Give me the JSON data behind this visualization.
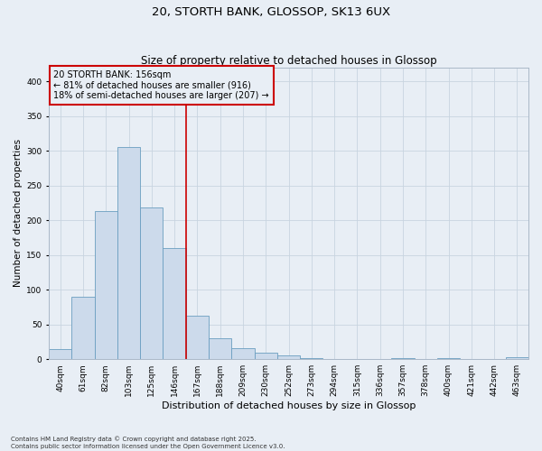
{
  "title1": "20, STORTH BANK, GLOSSOP, SK13 6UX",
  "title2": "Size of property relative to detached houses in Glossop",
  "xlabel": "Distribution of detached houses by size in Glossop",
  "ylabel": "Number of detached properties",
  "footnote1": "Contains HM Land Registry data © Crown copyright and database right 2025.",
  "footnote2": "Contains public sector information licensed under the Open Government Licence v3.0.",
  "categories": [
    "40sqm",
    "61sqm",
    "82sqm",
    "103sqm",
    "125sqm",
    "146sqm",
    "167sqm",
    "188sqm",
    "209sqm",
    "230sqm",
    "252sqm",
    "273sqm",
    "294sqm",
    "315sqm",
    "336sqm",
    "357sqm",
    "378sqm",
    "400sqm",
    "421sqm",
    "442sqm",
    "463sqm"
  ],
  "values": [
    15,
    90,
    213,
    305,
    218,
    160,
    63,
    30,
    16,
    10,
    6,
    1,
    0,
    0,
    0,
    2,
    0,
    1,
    0,
    0,
    3
  ],
  "bar_color": "#ccdaeb",
  "bar_edge_color": "#6a9ec0",
  "grid_color": "#c8d4e0",
  "bg_color": "#e8eef5",
  "vline_color": "#cc0000",
  "vline_pos": 5.5,
  "annotation_text": "20 STORTH BANK: 156sqm\n← 81% of detached houses are smaller (916)\n18% of semi-detached houses are larger (207) →",
  "annotation_box_edge_color": "#cc0000",
  "ylim": [
    0,
    420
  ],
  "yticks": [
    0,
    50,
    100,
    150,
    200,
    250,
    300,
    350,
    400
  ],
  "title1_fontsize": 9.5,
  "title2_fontsize": 8.5,
  "xlabel_fontsize": 8,
  "ylabel_fontsize": 7.5,
  "tick_fontsize": 6.5,
  "annot_fontsize": 7,
  "footnote_fontsize": 5
}
